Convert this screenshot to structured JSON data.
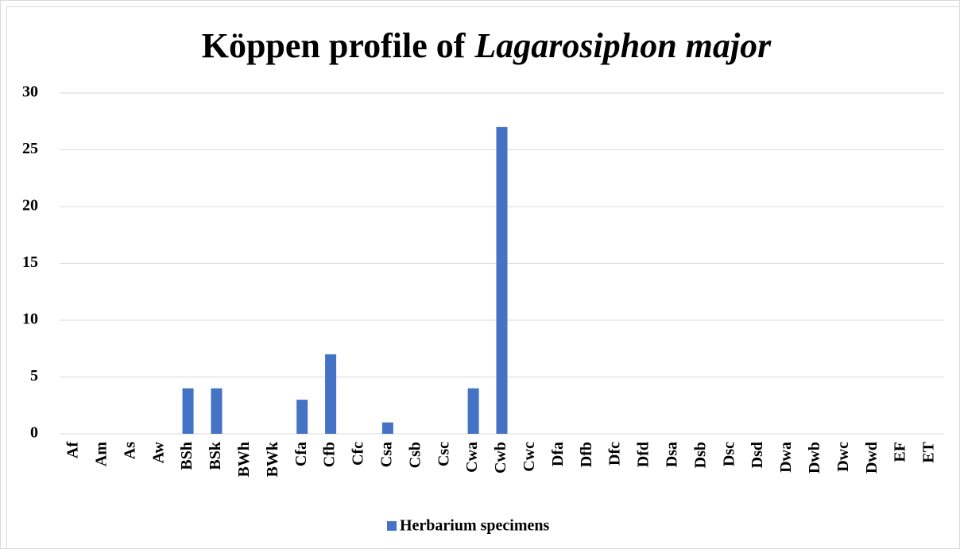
{
  "chart_data": {
    "type": "bar",
    "title": "Köppen profile of",
    "title_italic": "Lagarosiphon major",
    "categories": [
      "Af",
      "Am",
      "As",
      "Aw",
      "BSh",
      "BSk",
      "BWh",
      "BWk",
      "Cfa",
      "Cfb",
      "Cfc",
      "Csa",
      "Csb",
      "Csc",
      "Cwa",
      "Cwb",
      "Cwc",
      "Dfa",
      "Dfb",
      "Dfc",
      "Dfd",
      "Dsa",
      "Dsb",
      "Dsc",
      "Dsd",
      "Dwa",
      "Dwb",
      "Dwc",
      "Dwd",
      "EF",
      "ET"
    ],
    "series": [
      {
        "name": "Herbarium specimens",
        "color": "#4472c4",
        "values": [
          0,
          0,
          0,
          0,
          4,
          4,
          0,
          0,
          3,
          7,
          0,
          1,
          0,
          0,
          4,
          27,
          0,
          0,
          0,
          0,
          0,
          0,
          0,
          0,
          0,
          0,
          0,
          0,
          0,
          0,
          0
        ]
      }
    ],
    "ylim": [
      0,
      30
    ],
    "yticks": [
      0,
      5,
      10,
      15,
      20,
      25,
      30
    ],
    "grid": true,
    "legend": "bottom"
  }
}
